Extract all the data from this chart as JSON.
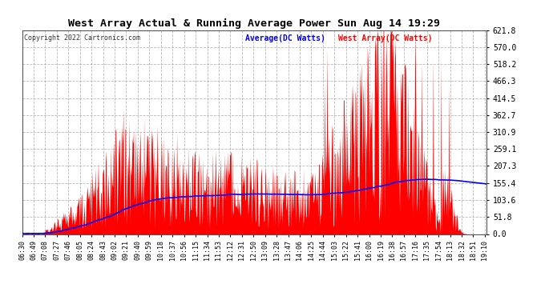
{
  "title": "West Array Actual & Running Average Power Sun Aug 14 19:29",
  "copyright": "Copyright 2022 Cartronics.com",
  "legend_avg": "Average(DC Watts)",
  "legend_west": "West Array(DC Watts)",
  "yticks": [
    0.0,
    51.8,
    103.6,
    155.4,
    207.3,
    259.1,
    310.9,
    362.7,
    414.5,
    466.3,
    518.2,
    570.0,
    621.8
  ],
  "ymax": 621.8,
  "bg_color": "#ffffff",
  "grid_color": "#999999",
  "fill_color": "#ff0000",
  "avg_color": "#0000ff",
  "title_color": "#000000",
  "copyright_color": "#333333",
  "time_start": "06:30",
  "time_end": "19:13",
  "minutes_per_step": 1
}
